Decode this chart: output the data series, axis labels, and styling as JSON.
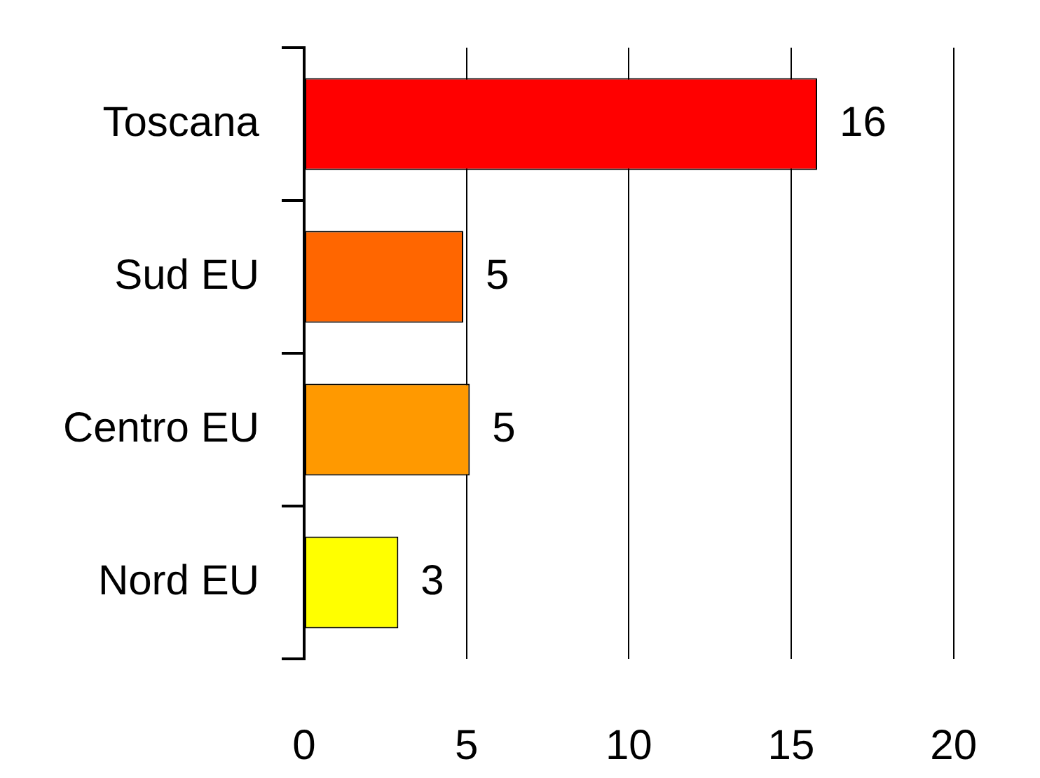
{
  "chart_data": {
    "type": "bar",
    "orientation": "horizontal",
    "categories": [
      "Toscana",
      "Sud EU",
      "Centro EU",
      "Nord EU"
    ],
    "values": [
      15.8,
      4.9,
      5.1,
      2.9
    ],
    "value_labels": [
      "16",
      "5",
      "5",
      "3"
    ],
    "colors": [
      "#ff0000",
      "#ff6600",
      "#ff9900",
      "#ffff00"
    ],
    "xlim": [
      0,
      20
    ],
    "xticks": [
      0,
      5,
      10,
      15,
      20
    ],
    "grid": "x"
  }
}
